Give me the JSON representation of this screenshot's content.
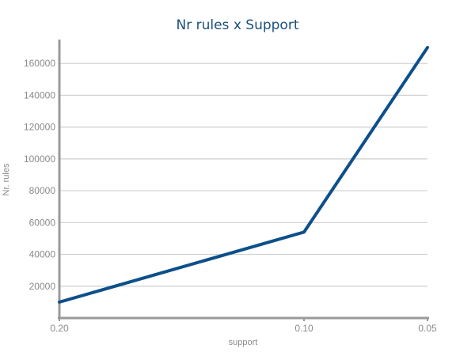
{
  "chart_data": {
    "type": "line",
    "title": "Nr rules x Support",
    "xlabel": "support",
    "ylabel": "Nr. rules",
    "x_ticks": [
      "0.20",
      "0.10",
      "0.05"
    ],
    "x": [
      "0.20",
      "0.10",
      "0.05"
    ],
    "series": [
      {
        "values": [
          10000,
          54000,
          170000
        ]
      }
    ],
    "y_ticks": [
      20000,
      40000,
      60000,
      80000,
      100000,
      120000,
      140000,
      160000
    ],
    "ylim": [
      0,
      175000
    ],
    "grid": true,
    "line_color": "#0d4f8b",
    "grid_color": "#cfcfcf",
    "axis_color": "#9a9a9a"
  }
}
